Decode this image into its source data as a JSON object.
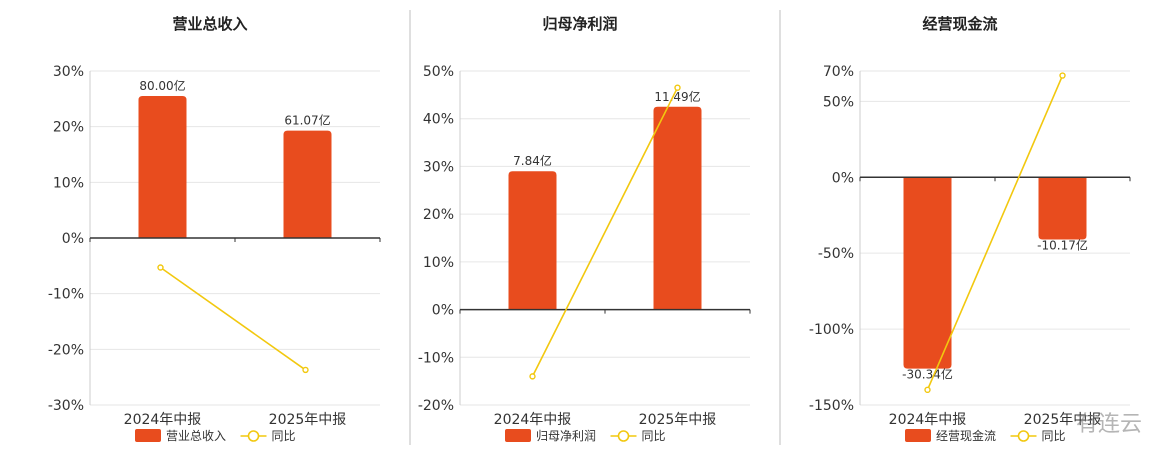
{
  "colors": {
    "bar": "#e84c1e",
    "line": "#f2c80f",
    "axis": "#333333",
    "grid": "#e6e6e6",
    "divider": "#bfbfbf"
  },
  "watermark": "有连云",
  "chart_data": [
    {
      "type": "bar",
      "title": "营业总收入",
      "categories": [
        "2024年中报",
        "2025年中报"
      ],
      "ylim": [
        -30,
        30
      ],
      "yticks": [
        -30,
        -20,
        -10,
        0,
        10,
        20,
        30
      ],
      "series": [
        {
          "name": "营业总收入",
          "type": "bar",
          "values": [
            25.5,
            19.3
          ],
          "labels": [
            "80.00亿",
            "61.07亿"
          ]
        },
        {
          "name": "同比",
          "type": "line",
          "values": [
            -5.3,
            -23.7
          ]
        }
      ],
      "legend": "bottom"
    },
    {
      "type": "bar",
      "title": "归母净利润",
      "categories": [
        "2024年中报",
        "2025年中报"
      ],
      "ylim": [
        -20,
        50
      ],
      "yticks": [
        -20,
        -10,
        0,
        10,
        20,
        30,
        40,
        50
      ],
      "series": [
        {
          "name": "归母净利润",
          "type": "bar",
          "values": [
            29,
            42.5
          ],
          "labels": [
            "7.84亿",
            "11.49亿"
          ]
        },
        {
          "name": "同比",
          "type": "line",
          "values": [
            -14,
            46.5
          ]
        }
      ],
      "legend": "bottom"
    },
    {
      "type": "bar",
      "title": "经营现金流",
      "categories": [
        "2024年中报",
        "2025年中报"
      ],
      "ylim": [
        -150,
        70
      ],
      "yticks": [
        -150,
        -100,
        -50,
        0,
        50,
        70
      ],
      "series": [
        {
          "name": "经营现金流",
          "type": "bar",
          "values": [
            -126,
            -41
          ],
          "labels": [
            "-30.34亿",
            "-10.17亿"
          ]
        },
        {
          "name": "同比",
          "type": "line",
          "values": [
            -140,
            67
          ]
        }
      ],
      "legend": "bottom"
    }
  ]
}
